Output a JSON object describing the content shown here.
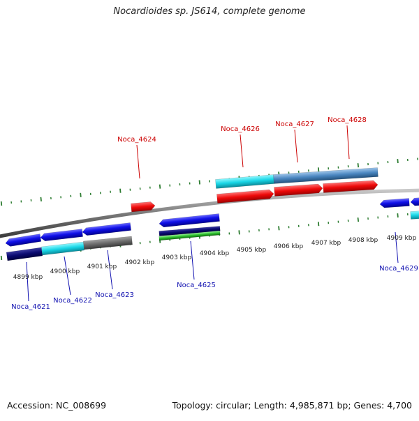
{
  "title": "Nocardioides sp. JS614, complete genome",
  "footer": {
    "accession": "Accession: NC_008699",
    "summary": "Topology: circular; Length: 4,985,871 bp; Genes: 4,700"
  },
  "colors": {
    "backbone": "#8a8a8a",
    "tick": "#2e7d32",
    "top_label": "#cc0000",
    "bottom_label": "#1010b0",
    "ruler_label": "#222222"
  },
  "ruler_labels": [
    "4899 kbp",
    "4900 kbp",
    "4901 kbp",
    "4902 kbp",
    "4903 kbp",
    "4904 kbp",
    "4905 kbp",
    "4906 kbp",
    "4907 kbp",
    "4908 kbp",
    "4909 kbp"
  ],
  "gene_labels": [
    {
      "id": "Noca_4621",
      "strand": "reverse"
    },
    {
      "id": "Noca_4622",
      "strand": "reverse"
    },
    {
      "id": "Noca_4623",
      "strand": "reverse"
    },
    {
      "id": "Noca_4624",
      "strand": "forward"
    },
    {
      "id": "Noca_4625",
      "strand": "reverse"
    },
    {
      "id": "Noca_4626",
      "strand": "forward"
    },
    {
      "id": "Noca_4627",
      "strand": "forward"
    },
    {
      "id": "Noca_4628",
      "strand": "forward"
    },
    {
      "id": "Noca_4629",
      "strand": "reverse"
    }
  ]
}
